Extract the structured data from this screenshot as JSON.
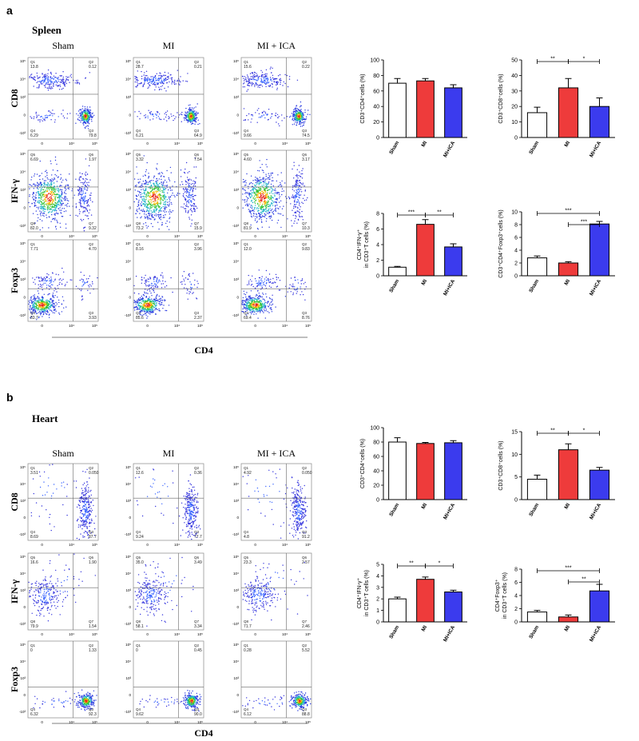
{
  "sections": [
    {
      "letter": "a",
      "tissue": "Spleen",
      "columns": [
        "Sham",
        "MI",
        "MI + ICA"
      ],
      "x_marker": "CD4",
      "rows": [
        {
          "marker": "CD8",
          "plots": [
            [
              {
                "q": "Q1",
                "v": "13.8"
              },
              {
                "q": "Q2",
                "v": "0.12"
              },
              {
                "q": "Q4",
                "v": "6.29"
              },
              {
                "q": "Q3",
                "v": "79.8"
              }
            ],
            [
              {
                "q": "Q1",
                "v": "28.7"
              },
              {
                "q": "Q2",
                "v": "0.21"
              },
              {
                "q": "Q4",
                "v": "6.21"
              },
              {
                "q": "Q3",
                "v": "64.9"
              }
            ],
            [
              {
                "q": "Q1",
                "v": "15.6"
              },
              {
                "q": "Q2",
                "v": "0.22"
              },
              {
                "q": "Q4",
                "v": "9.66"
              },
              {
                "q": "Q3",
                "v": "74.5"
              }
            ]
          ]
        },
        {
          "marker": "IFN-γ",
          "plots": [
            [
              {
                "q": "Q5",
                "v": "6.69"
              },
              {
                "q": "Q6",
                "v": "1.97"
              },
              {
                "q": "Q8",
                "v": "82.0"
              },
              {
                "q": "Q7",
                "v": "9.32"
              }
            ],
            [
              {
                "q": "Q5",
                "v": "3.32"
              },
              {
                "q": "Q6",
                "v": "7.54"
              },
              {
                "q": "Q8",
                "v": "73.2"
              },
              {
                "q": "Q7",
                "v": "15.9"
              }
            ],
            [
              {
                "q": "Q5",
                "v": "4.60"
              },
              {
                "q": "Q6",
                "v": "3.17"
              },
              {
                "q": "Q8",
                "v": "81.9"
              },
              {
                "q": "Q7",
                "v": "10.3"
              }
            ]
          ]
        },
        {
          "marker": "Foxp3",
          "plots": [
            [
              {
                "q": "Q1",
                "v": "7.71"
              },
              {
                "q": "Q2",
                "v": "4.70"
              },
              {
                "q": "Q4",
                "v": "83.7"
              },
              {
                "q": "Q3",
                "v": "3.93"
              }
            ],
            [
              {
                "q": "Q1",
                "v": "8.16"
              },
              {
                "q": "Q2",
                "v": "3.96"
              },
              {
                "q": "Q4",
                "v": "85.6"
              },
              {
                "q": "Q3",
                "v": "2.37"
              }
            ],
            [
              {
                "q": "Q1",
                "v": "12.0"
              },
              {
                "q": "Q2",
                "v": "9.83"
              },
              {
                "q": "Q4",
                "v": "69.4"
              },
              {
                "q": "Q3",
                "v": "8.76"
              }
            ]
          ]
        }
      ]
    },
    {
      "letter": "b",
      "tissue": "Heart",
      "columns": [
        "Sham",
        "MI",
        "MI + ICA"
      ],
      "x_marker": "CD4",
      "rows": [
        {
          "marker": "CD8",
          "plots": [
            [
              {
                "q": "Q1",
                "v": "3.51"
              },
              {
                "q": "Q2",
                "v": "0.050"
              },
              {
                "q": "Q4",
                "v": "8.69"
              },
              {
                "q": "Q3",
                "v": "87.7"
              }
            ],
            [
              {
                "q": "Q1",
                "v": "12.6"
              },
              {
                "q": "Q2",
                "v": "0.36"
              },
              {
                "q": "Q4",
                "v": "9.24"
              },
              {
                "q": "Q3",
                "v": "77.7"
              }
            ],
            [
              {
                "q": "Q1",
                "v": "4.92"
              },
              {
                "q": "Q2",
                "v": "0.050"
              },
              {
                "q": "Q4",
                "v": "4.8"
              },
              {
                "q": "Q3",
                "v": "91.2"
              }
            ]
          ]
        },
        {
          "marker": "IFN-γ",
          "plots": [
            [
              {
                "q": "Q5",
                "v": "16.6"
              },
              {
                "q": "Q6",
                "v": "1.90"
              },
              {
                "q": "Q8",
                "v": "79.9"
              },
              {
                "q": "Q7",
                "v": "1.54"
              }
            ],
            [
              {
                "q": "Q5",
                "v": "35.0"
              },
              {
                "q": "Q6",
                "v": "3.49"
              },
              {
                "q": "Q8",
                "v": "58.1"
              },
              {
                "q": "Q7",
                "v": "3.34"
              }
            ],
            [
              {
                "q": "Q5",
                "v": "23.3"
              },
              {
                "q": "Q6",
                "v": "2.57"
              },
              {
                "q": "Q8",
                "v": "71.7"
              },
              {
                "q": "Q7",
                "v": "2.46"
              }
            ]
          ]
        },
        {
          "marker": "Foxp3",
          "plots": [
            [
              {
                "q": "Q1",
                "v": "0"
              },
              {
                "q": "Q2",
                "v": "1.33"
              },
              {
                "q": "Q4",
                "v": "6.32"
              },
              {
                "q": "Q3",
                "v": "92.3"
              }
            ],
            [
              {
                "q": "Q1",
                "v": "0"
              },
              {
                "q": "Q2",
                "v": "0.45"
              },
              {
                "q": "Q4",
                "v": "9.62"
              },
              {
                "q": "Q3",
                "v": "90.0"
              }
            ],
            [
              {
                "q": "Q1",
                "v": "0.28"
              },
              {
                "q": "Q2",
                "v": "5.52"
              },
              {
                "q": "Q4",
                "v": "6.12"
              },
              {
                "q": "Q3",
                "v": "88.8"
              }
            ]
          ]
        }
      ]
    }
  ],
  "flow_axis": {
    "xticks": [
      "0",
      "10⁴",
      "10⁵"
    ],
    "yticks": [
      "10⁵",
      "10⁴",
      "10³",
      "0",
      "-10³"
    ]
  },
  "chart_data": [
    {
      "type": "bar",
      "ylabel": [
        "CD3⁺CD4⁺cells (%)"
      ],
      "categories": [
        "Sham",
        "MI",
        "MI+ICA"
      ],
      "values": [
        70,
        73,
        64
      ],
      "errors": [
        6,
        3,
        4
      ],
      "colors": [
        "#ffffff",
        "#ee3b3b",
        "#3b3bee"
      ],
      "ylim": [
        0,
        100
      ],
      "yticks": [
        0,
        20,
        40,
        60,
        80,
        100
      ],
      "significance": []
    },
    {
      "type": "bar",
      "ylabel": [
        "CD3⁺CD8⁺cells (%)"
      ],
      "categories": [
        "Sham",
        "MI",
        "MI+ICA"
      ],
      "values": [
        16,
        32,
        20
      ],
      "errors": [
        3.5,
        6,
        5.5
      ],
      "colors": [
        "#ffffff",
        "#ee3b3b",
        "#3b3bee"
      ],
      "ylim": [
        0,
        50
      ],
      "yticks": [
        0,
        10,
        20,
        30,
        40,
        50
      ],
      "significance": [
        {
          "from": "Sham",
          "to": "MI",
          "label": "**"
        },
        {
          "from": "MI",
          "to": "MI+ICA",
          "label": "*"
        }
      ]
    },
    {
      "type": "bar",
      "ylabel": [
        "CD4⁺IFN-γ⁺",
        "in CD3⁺T cells (%)"
      ],
      "categories": [
        "Sham",
        "MI",
        "MI+ICA"
      ],
      "values": [
        1.1,
        6.6,
        3.7
      ],
      "errors": [
        0.1,
        0.6,
        0.4
      ],
      "colors": [
        "#ffffff",
        "#ee3b3b",
        "#3b3bee"
      ],
      "ylim": [
        0,
        8
      ],
      "yticks": [
        0,
        2,
        4,
        6,
        8
      ],
      "significance": [
        {
          "from": "Sham",
          "to": "MI",
          "label": "***"
        },
        {
          "from": "MI",
          "to": "MI+ICA",
          "label": "**"
        }
      ]
    },
    {
      "type": "bar",
      "ylabel": [
        "CD3⁺CD4⁺Foxp3⁺cells (%)"
      ],
      "categories": [
        "Sham",
        "MI",
        "MI+ICA"
      ],
      "values": [
        2.8,
        2.0,
        8.1
      ],
      "errors": [
        0.3,
        0.2,
        0.4
      ],
      "colors": [
        "#ffffff",
        "#ee3b3b",
        "#3b3bee"
      ],
      "ylim": [
        0,
        10
      ],
      "yticks": [
        0,
        2,
        4,
        6,
        8,
        10
      ],
      "significance": [
        {
          "from": "Sham",
          "to": "MI+ICA",
          "label": "***"
        },
        {
          "from": "MI",
          "to": "MI+ICA",
          "label": "***"
        }
      ]
    },
    {
      "type": "bar",
      "ylabel": [
        "CD3⁺CD4⁺cells (%)"
      ],
      "categories": [
        "Sham",
        "MI",
        "MI+ICA"
      ],
      "values": [
        80,
        78,
        79
      ],
      "errors": [
        6,
        1.5,
        3
      ],
      "colors": [
        "#ffffff",
        "#ee3b3b",
        "#3b3bee"
      ],
      "ylim": [
        0,
        100
      ],
      "yticks": [
        0,
        20,
        40,
        60,
        80,
        100
      ],
      "significance": []
    },
    {
      "type": "bar",
      "ylabel": [
        "CD3⁺CD8⁺cells (%)"
      ],
      "categories": [
        "Sham",
        "MI",
        "MI+ICA"
      ],
      "values": [
        4.5,
        11,
        6.5
      ],
      "errors": [
        0.9,
        1.3,
        0.6
      ],
      "colors": [
        "#ffffff",
        "#ee3b3b",
        "#3b3bee"
      ],
      "ylim": [
        0,
        15
      ],
      "yticks": [
        0,
        5,
        10,
        15
      ],
      "significance": [
        {
          "from": "Sham",
          "to": "MI",
          "label": "**"
        },
        {
          "from": "MI",
          "to": "MI+ICA",
          "label": "*"
        }
      ]
    },
    {
      "type": "bar",
      "ylabel": [
        "CD4⁺IFN-γ⁺",
        "in CD3⁺T cells (%)"
      ],
      "categories": [
        "Sham",
        "MI",
        "MI+ICA"
      ],
      "values": [
        2.0,
        3.7,
        2.6
      ],
      "errors": [
        0.15,
        0.2,
        0.15
      ],
      "colors": [
        "#ffffff",
        "#ee3b3b",
        "#3b3bee"
      ],
      "ylim": [
        0,
        5
      ],
      "yticks": [
        0,
        1,
        2,
        3,
        4,
        5
      ],
      "significance": [
        {
          "from": "Sham",
          "to": "MI",
          "label": "**"
        },
        {
          "from": "MI",
          "to": "MI+ICA",
          "label": "*"
        }
      ]
    },
    {
      "type": "bar",
      "ylabel": [
        "CD4⁺Foxp3⁺",
        "in CD3⁺T cells (%)"
      ],
      "categories": [
        "Sham",
        "MI",
        "MI+ICA"
      ],
      "values": [
        1.5,
        0.75,
        4.7
      ],
      "errors": [
        0.25,
        0.3,
        1.0
      ],
      "colors": [
        "#ffffff",
        "#ee3b3b",
        "#3b3bee"
      ],
      "ylim": [
        0,
        8
      ],
      "yticks": [
        0,
        2,
        4,
        6,
        8
      ],
      "significance": [
        {
          "from": "Sham",
          "to": "MI+ICA",
          "label": "***"
        },
        {
          "from": "MI",
          "to": "MI+ICA",
          "label": "**"
        }
      ]
    }
  ]
}
